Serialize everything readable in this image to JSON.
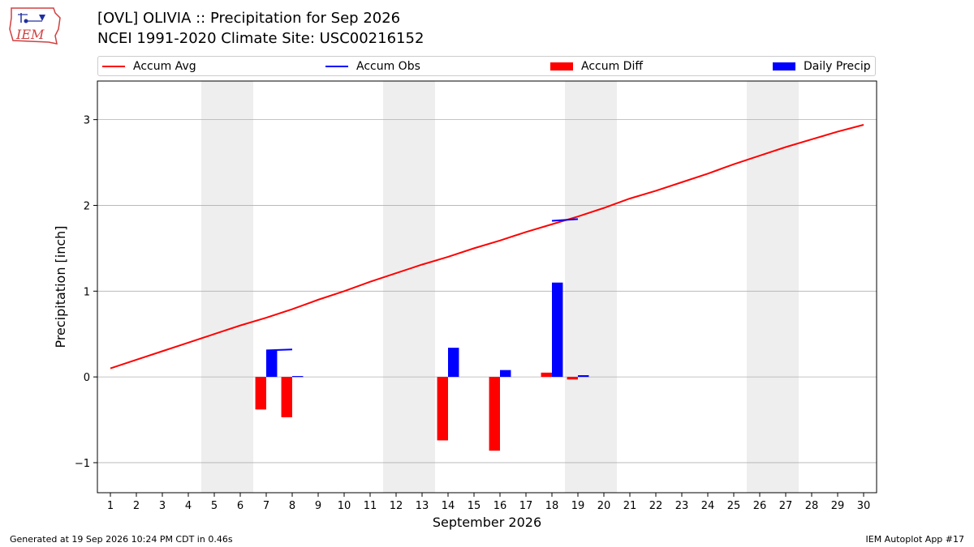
{
  "header": {
    "title_line1": "[OVL] OLIVIA :: Precipitation for Sep 2026",
    "title_line2": "NCEI 1991-2020 Climate Site: USC00216152",
    "logo_text": "IEM"
  },
  "footer": {
    "generated": "Generated at 19 Sep 2026 10:24 PM CDT in 0.46s",
    "app": "IEM Autoplot App #17"
  },
  "colors": {
    "accum_avg": "#ff0000",
    "accum_obs": "#0000ff",
    "accum_diff": "#ff0000",
    "daily_precip": "#0000ff",
    "weekend_shade": "#eeeeee",
    "grid": "#b0b0b0"
  },
  "chart_data": {
    "type": "bar",
    "xlabel": "September 2026",
    "ylabel": "Precipitation [inch]",
    "ylim": [
      -1.35,
      3.45
    ],
    "yticks": [
      -1,
      0,
      1,
      2,
      3
    ],
    "ytick_labels": [
      "−1",
      "0",
      "1",
      "2",
      "3"
    ],
    "xlim": [
      0.5,
      30.5
    ],
    "days": [
      1,
      2,
      3,
      4,
      5,
      6,
      7,
      8,
      9,
      10,
      11,
      12,
      13,
      14,
      15,
      16,
      17,
      18,
      19,
      20,
      21,
      22,
      23,
      24,
      25,
      26,
      27,
      28,
      29,
      30
    ],
    "grid": "horizontal",
    "legend_placement": "top",
    "weekend_shading": [
      [
        4.5,
        6.5
      ],
      [
        11.5,
        13.5
      ],
      [
        18.5,
        20.5
      ],
      [
        25.5,
        27.5
      ]
    ],
    "series": [
      {
        "name": "Accum Avg",
        "kind": "line",
        "values": [
          0.1,
          0.2,
          0.3,
          0.4,
          0.5,
          0.6,
          0.69,
          0.79,
          0.9,
          1.0,
          1.11,
          1.21,
          1.31,
          1.4,
          1.5,
          1.59,
          1.69,
          1.78,
          1.87,
          1.97,
          2.08,
          2.17,
          2.27,
          2.37,
          2.48,
          2.58,
          2.68,
          2.77,
          2.86,
          2.94
        ]
      },
      {
        "name": "Accum Obs",
        "kind": "step",
        "x": [
          7,
          8,
          18
        ],
        "values": [
          0.31,
          0.32,
          1.82
        ]
      },
      {
        "name": "Accum Diff",
        "kind": "bar",
        "x": [
          7,
          8,
          14,
          16,
          18,
          19
        ],
        "values": [
          -0.38,
          -0.47,
          -0.74,
          -0.86,
          0.05,
          -0.03
        ]
      },
      {
        "name": "Daily Precip",
        "kind": "bar",
        "x": [
          7,
          8,
          14,
          16,
          18,
          19
        ],
        "values": [
          0.31,
          0.01,
          0.34,
          0.08,
          1.1,
          0.02
        ]
      }
    ]
  }
}
